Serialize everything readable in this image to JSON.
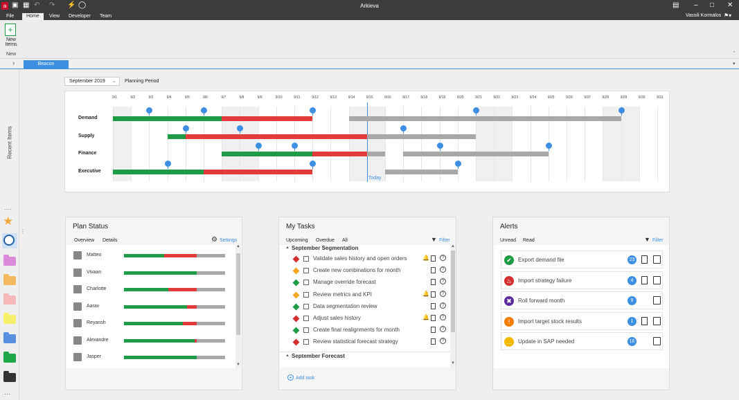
{
  "app": {
    "title": "Arkieva",
    "user": "Vassili Kormalos"
  },
  "menu": [
    "File",
    "Home",
    "View",
    "Developer",
    "Team"
  ],
  "ribbon": {
    "new_items": "New Items",
    "group_new": "New"
  },
  "tab": {
    "beacon": "Beacon"
  },
  "recent_items": "Recent Items",
  "timeline": {
    "period": "September 2019",
    "period_label": "Planning Period",
    "today": "Today",
    "dates": [
      "9/1",
      "9/2",
      "9/3",
      "9/4",
      "9/5",
      "9/6",
      "9/7",
      "9/8",
      "9/9",
      "9/10",
      "9/11",
      "9/12",
      "9/13",
      "9/14",
      "9/15",
      "9/16",
      "9/17",
      "9/18",
      "9/19",
      "9/20",
      "9/21",
      "9/22",
      "9/23",
      "9/24",
      "9/25",
      "9/26",
      "9/27",
      "9/28",
      "9/29",
      "9/30",
      "9/31"
    ],
    "rows": [
      {
        "label": "Demand",
        "segments": [
          {
            "s": 1,
            "e": 7,
            "c": "g"
          },
          {
            "s": 7,
            "e": 12,
            "c": "r"
          },
          {
            "s": 14,
            "e": 21,
            "c": "gr"
          },
          {
            "s": 21,
            "e": 29,
            "c": "gr"
          }
        ],
        "markers": [
          3,
          6,
          12,
          21,
          29
        ]
      },
      {
        "label": "Supply",
        "segments": [
          {
            "s": 4,
            "e": 5,
            "c": "g"
          },
          {
            "s": 5,
            "e": 15,
            "c": "r"
          },
          {
            "s": 15,
            "e": 21,
            "c": "gr"
          }
        ],
        "markers": [
          5,
          8,
          17
        ]
      },
      {
        "label": "Finance",
        "segments": [
          {
            "s": 7,
            "e": 12,
            "c": "g"
          },
          {
            "s": 12,
            "e": 15,
            "c": "r"
          },
          {
            "s": 15,
            "e": 16,
            "c": "gr"
          },
          {
            "s": 17,
            "e": 25,
            "c": "gr"
          }
        ],
        "markers": [
          9,
          11,
          19,
          25
        ]
      },
      {
        "label": "Executive",
        "segments": [
          {
            "s": 1,
            "e": 6,
            "c": "g"
          },
          {
            "s": 6,
            "e": 12,
            "c": "r"
          },
          {
            "s": 16,
            "e": 20,
            "c": "gr"
          }
        ],
        "markers": [
          4,
          12,
          20
        ]
      }
    ]
  },
  "plan_status": {
    "title": "Plan Status",
    "tabs": [
      "Overview",
      "Details"
    ],
    "settings": "Settings",
    "people": [
      {
        "name": "Matteo",
        "g": 0.4,
        "r": 0.32
      },
      {
        "name": "Vivaan",
        "g": 0.72,
        "r": 0
      },
      {
        "name": "Charlotte",
        "g": 0.44,
        "r": 0.28
      },
      {
        "name": "Aarav",
        "g": 0.62,
        "r": 0.1
      },
      {
        "name": "Reyansh",
        "g": 0.58,
        "r": 0.14
      },
      {
        "name": "Alexandre",
        "g": 0.7,
        "r": 0.02
      },
      {
        "name": "Jasper",
        "g": 0.72,
        "r": 0
      }
    ]
  },
  "tasks": {
    "title": "My Tasks",
    "tabs": [
      "Upcoming",
      "Overdue",
      "All"
    ],
    "filter": "Filter",
    "add": "Add task",
    "groups": [
      "September Segmentation",
      "September Forecast"
    ],
    "items": [
      {
        "label": "Validate sales history and open orders",
        "color": "#d32f2f",
        "bell": true
      },
      {
        "label": "Create new combinations for month",
        "color": "#f5a623",
        "bell": false
      },
      {
        "label": "Manage override forecast",
        "color": "#1e9b45",
        "bell": false
      },
      {
        "label": "Review metrics and KPI",
        "color": "#f5a623",
        "bell": true
      },
      {
        "label": "Data segmentation review",
        "color": "#1e9b45",
        "bell": false
      },
      {
        "label": "Adjust sales history",
        "color": "#d32f2f",
        "bell": true
      },
      {
        "label": "Create final realignments for month",
        "color": "#1e9b45",
        "bell": false
      },
      {
        "label": "Review statistical forecast strategy",
        "color": "#d32f2f",
        "bell": false
      }
    ]
  },
  "alerts": {
    "title": "Alerts",
    "tabs": [
      "Unread",
      "Read"
    ],
    "filter": "Filter",
    "items": [
      {
        "label": "Export demand file",
        "count": "23",
        "color": "#1e9b45",
        "icon": "check-icon",
        "doc": true
      },
      {
        "label": "Import strategy failure",
        "count": "4",
        "color": "#d32f2f",
        "icon": "fire-icon",
        "doc": true
      },
      {
        "label": "Roll forward month",
        "count": "9",
        "color": "#5b2d9e",
        "icon": "cross-icon",
        "doc": false
      },
      {
        "label": "Import target stock results",
        "count": "1",
        "color": "#f57c00",
        "icon": "exclamation-icon",
        "doc": true
      },
      {
        "label": "Update in SAP needed",
        "count": "16",
        "color": "#f5b800",
        "icon": "dots-icon",
        "doc": false
      }
    ]
  }
}
